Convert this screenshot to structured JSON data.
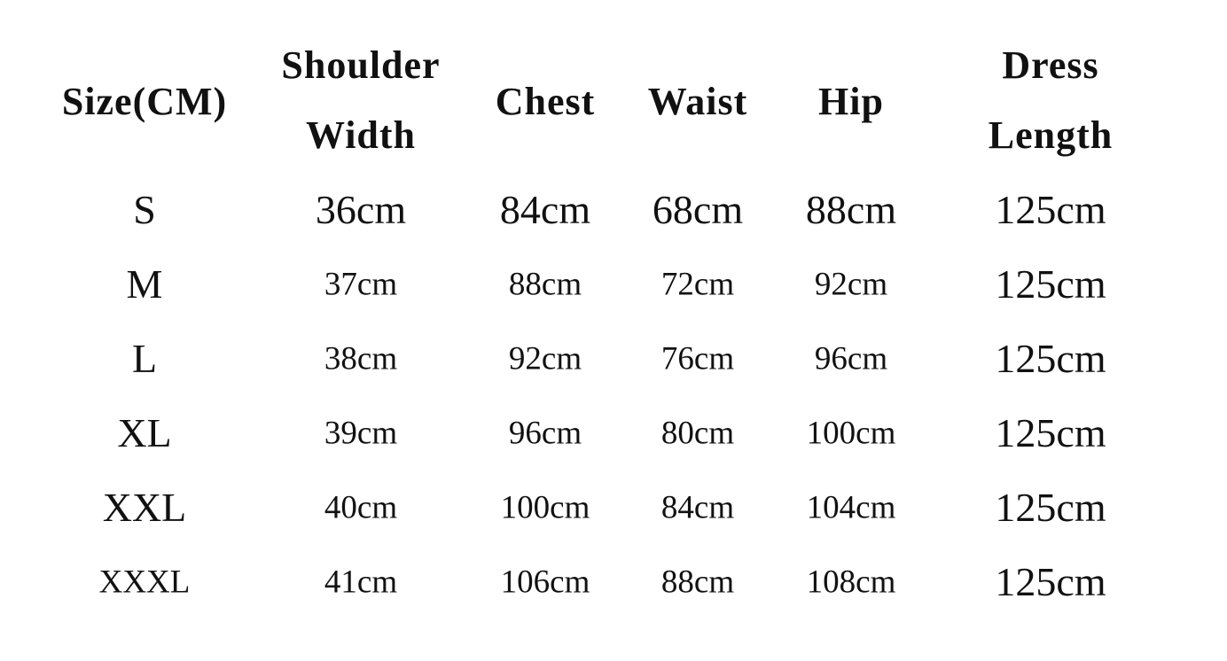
{
  "headers": [
    {
      "lines": [
        "Size(CM)"
      ]
    },
    {
      "lines": [
        "Shoulder",
        "Width"
      ]
    },
    {
      "lines": [
        "Chest"
      ]
    },
    {
      "lines": [
        "Waist"
      ]
    },
    {
      "lines": [
        "Hip"
      ]
    },
    {
      "lines": [
        "Dress",
        "Length"
      ]
    }
  ],
  "rows": [
    [
      "S",
      "36cm",
      "84cm",
      "68cm",
      "88cm",
      "125cm"
    ],
    [
      "M",
      "37cm",
      "88cm",
      "72cm",
      "92cm",
      "125cm"
    ],
    [
      "L",
      "38cm",
      "92cm",
      "76cm",
      "96cm",
      "125cm"
    ],
    [
      "XL",
      "39cm",
      "96cm",
      "80cm",
      "100cm",
      "125cm"
    ],
    [
      "XXL",
      "40cm",
      "100cm",
      "84cm",
      "104cm",
      "125cm"
    ],
    [
      "XXXL",
      "41cm",
      "106cm",
      "88cm",
      "108cm",
      "125cm"
    ]
  ]
}
